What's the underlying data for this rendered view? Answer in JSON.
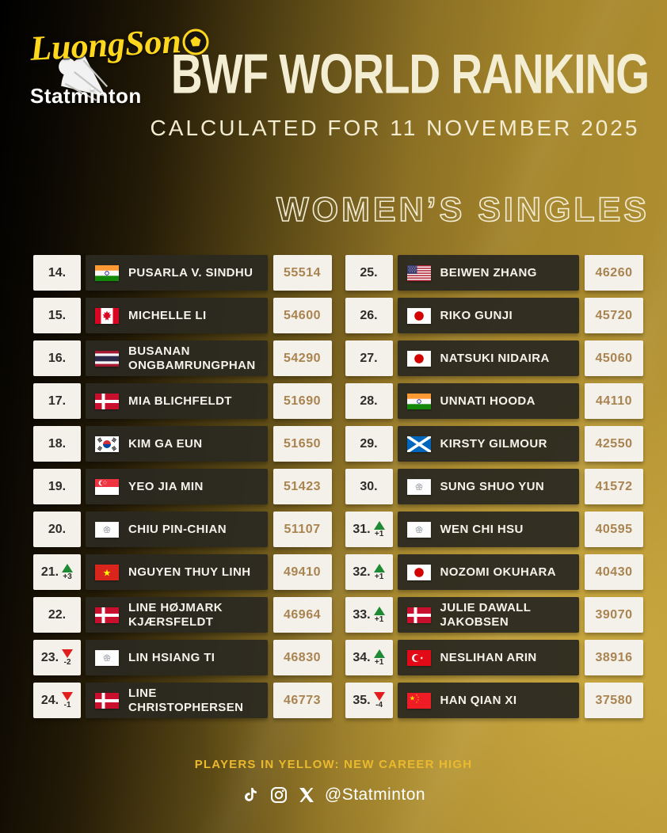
{
  "colors": {
    "accent_yellow": "#ffd71c",
    "cream": "#f3edd3",
    "points_gold": "#a98350",
    "up_green": "#1e8a34",
    "down_red": "#e31d1d",
    "note_yellow": "#eab92d",
    "bar_dark": "#2b2921",
    "box_white": "#f4f1ea"
  },
  "header": {
    "brand_name": "LuongSon",
    "brand_tagline": "Statminton",
    "title": "BWF WORLD RANKING",
    "subtitle": "CALCULATED FOR 11 NOVEMBER 2025",
    "category": "WOMEN’S SINGLES"
  },
  "ranking": {
    "left": [
      {
        "rank": "14.",
        "change": null,
        "flag": "in",
        "country": "India",
        "name": "PUSARLA V. SINDHU",
        "points": "55514"
      },
      {
        "rank": "15.",
        "change": null,
        "flag": "ca",
        "country": "Canada",
        "name": "MICHELLE LI",
        "points": "54600"
      },
      {
        "rank": "16.",
        "change": null,
        "flag": "th",
        "country": "Thailand",
        "name": "BUSANAN ONGBAMRUNGPHAN",
        "points": "54290"
      },
      {
        "rank": "17.",
        "change": null,
        "flag": "dk",
        "country": "Denmark",
        "name": "MIA BLICHFELDT",
        "points": "51690"
      },
      {
        "rank": "18.",
        "change": null,
        "flag": "kr",
        "country": "South Korea",
        "name": "KIM GA EUN",
        "points": "51650"
      },
      {
        "rank": "19.",
        "change": null,
        "flag": "sg",
        "country": "Singapore",
        "name": "YEO JIA MIN",
        "points": "51423"
      },
      {
        "rank": "20.",
        "change": null,
        "flag": "tpe",
        "country": "Chinese Taipei",
        "name": "CHIU PIN-CHIAN",
        "points": "51107"
      },
      {
        "rank": "21.",
        "change": {
          "direction": "up",
          "value": "+3"
        },
        "flag": "vn",
        "country": "Vietnam",
        "name": "NGUYEN THUY LINH",
        "points": "49410"
      },
      {
        "rank": "22.",
        "change": null,
        "flag": "dk",
        "country": "Denmark",
        "name": "LINE HØJMARK KJÆRSFELDT",
        "points": "46964"
      },
      {
        "rank": "23.",
        "change": {
          "direction": "down",
          "value": "-2"
        },
        "flag": "tpe",
        "country": "Chinese Taipei",
        "name": "LIN HSIANG TI",
        "points": "46830"
      },
      {
        "rank": "24.",
        "change": {
          "direction": "down",
          "value": "-1"
        },
        "flag": "dk",
        "country": "Denmark",
        "name": "LINE CHRISTOPHERSEN",
        "points": "46773"
      }
    ],
    "right": [
      {
        "rank": "25.",
        "change": null,
        "flag": "us",
        "country": "United States",
        "name": "BEIWEN ZHANG",
        "points": "46260"
      },
      {
        "rank": "26.",
        "change": null,
        "flag": "jp",
        "country": "Japan",
        "name": "RIKO GUNJI",
        "points": "45720"
      },
      {
        "rank": "27.",
        "change": null,
        "flag": "jp",
        "country": "Japan",
        "name": "NATSUKI NIDAIRA",
        "points": "45060"
      },
      {
        "rank": "28.",
        "change": null,
        "flag": "in",
        "country": "India",
        "name": "UNNATI HOODA",
        "points": "44110"
      },
      {
        "rank": "29.",
        "change": null,
        "flag": "sct",
        "country": "Scotland",
        "name": "KIRSTY GILMOUR",
        "points": "42550"
      },
      {
        "rank": "30.",
        "change": null,
        "flag": "tpe",
        "country": "Chinese Taipei",
        "name": "SUNG SHUO YUN",
        "points": "41572"
      },
      {
        "rank": "31.",
        "change": {
          "direction": "up",
          "value": "+1"
        },
        "flag": "tpe",
        "country": "Chinese Taipei",
        "name": "WEN CHI HSU",
        "points": "40595"
      },
      {
        "rank": "32.",
        "change": {
          "direction": "up",
          "value": "+1"
        },
        "flag": "jp",
        "country": "Japan",
        "name": "NOZOMI OKUHARA",
        "points": "40430"
      },
      {
        "rank": "33.",
        "change": {
          "direction": "up",
          "value": "+1"
        },
        "flag": "dk",
        "country": "Denmark",
        "name": "JULIE DAWALL JAKOBSEN",
        "points": "39070"
      },
      {
        "rank": "34.",
        "change": {
          "direction": "up",
          "value": "+1"
        },
        "flag": "tr",
        "country": "Turkey",
        "name": "NESLIHAN ARIN",
        "points": "38916"
      },
      {
        "rank": "35.",
        "change": {
          "direction": "down",
          "value": "-4"
        },
        "flag": "cn",
        "country": "China",
        "name": "HAN QIAN XI",
        "points": "37580"
      }
    ]
  },
  "footer": {
    "note": "PLAYERS IN YELLOW: NEW CAREER HIGH",
    "social_icons": [
      "tiktok-icon",
      "instagram-icon",
      "x-icon"
    ],
    "social_handle": "@Statminton"
  }
}
